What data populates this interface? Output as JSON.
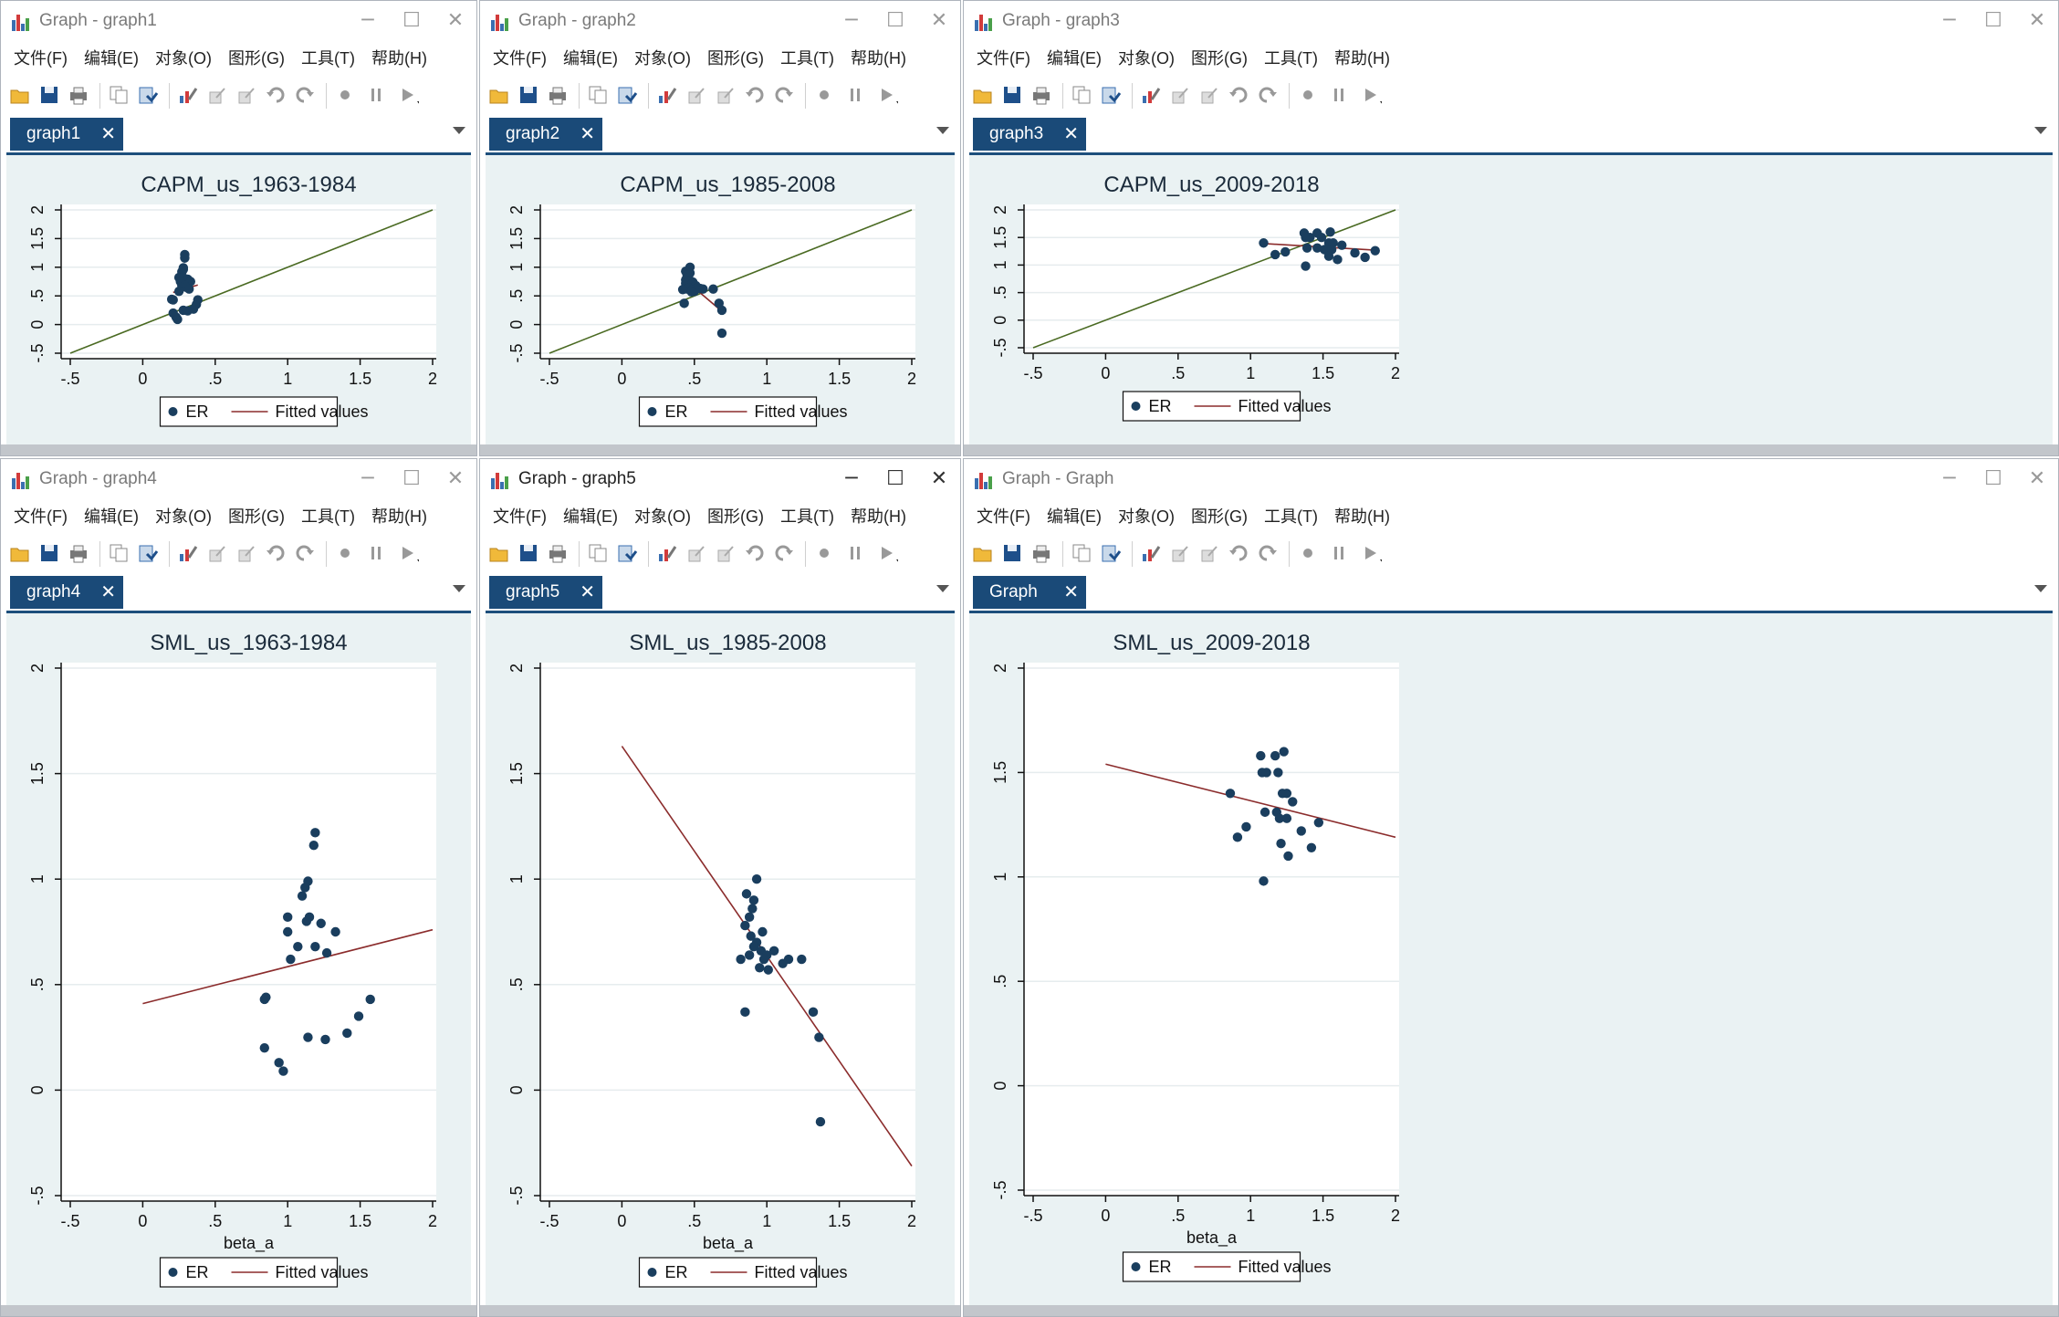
{
  "menu": [
    "文件(F)",
    "编辑(E)",
    "对象(O)",
    "图形(G)",
    "工具(T)",
    "帮助(H)"
  ],
  "controls": {
    "minimize": "─",
    "maximize": "☐",
    "close": "✕"
  },
  "colors": {
    "dot": "#1a3e5e",
    "capm_line": "#4a6a22",
    "fit_line": "#8b2c2c",
    "plot_bg": "#ffffff",
    "region_bg": "#eaf2f3",
    "tab": "#1a4a78"
  },
  "windows": [
    {
      "title": "Graph - graph1",
      "tab": "graph1",
      "active": false
    },
    {
      "title": "Graph - graph2",
      "tab": "graph2",
      "active": false
    },
    {
      "title": "Graph - graph3",
      "tab": "graph3",
      "active": false
    },
    {
      "title": "Graph - graph4",
      "tab": "graph4",
      "active": false
    },
    {
      "title": "Graph - graph5",
      "tab": "graph5",
      "active": true
    },
    {
      "title": "Graph - Graph",
      "tab": "Graph",
      "active": false
    }
  ],
  "chart_data": [
    {
      "type": "scatter",
      "title": "CAPM_us_1963-1984",
      "xlabel": "",
      "ylabel": "",
      "xlim": [
        -0.5,
        2
      ],
      "ylim": [
        -0.5,
        2
      ],
      "x_ticks": [
        "-.5",
        "0",
        ".5",
        "1",
        "1.5",
        "2"
      ],
      "y_ticks": [
        "-.5",
        "0",
        ".5",
        "1",
        "1.5",
        "2"
      ],
      "legend": [
        "ER",
        "Fitted values"
      ],
      "grid": true,
      "legend_position": "bottom",
      "series": [
        {
          "name": "ER",
          "points": [
            [
              0.29,
              1.22
            ],
            [
              0.29,
              1.16
            ],
            [
              0.28,
              0.99
            ],
            [
              0.28,
              0.96
            ],
            [
              0.27,
              0.92
            ],
            [
              0.25,
              0.82
            ],
            [
              0.27,
              0.82
            ],
            [
              0.29,
              0.8
            ],
            [
              0.31,
              0.79
            ],
            [
              0.33,
              0.75
            ],
            [
              0.26,
              0.75
            ],
            [
              0.27,
              0.68
            ],
            [
              0.29,
              0.68
            ],
            [
              0.3,
              0.65
            ],
            [
              0.32,
              0.62
            ],
            [
              0.25,
              0.58
            ],
            [
              0.2,
              0.44
            ],
            [
              0.21,
              0.43
            ],
            [
              0.38,
              0.43
            ],
            [
              0.37,
              0.35
            ],
            [
              0.35,
              0.27
            ],
            [
              0.28,
              0.25
            ],
            [
              0.31,
              0.24
            ],
            [
              0.21,
              0.2
            ],
            [
              0.23,
              0.13
            ],
            [
              0.24,
              0.09
            ]
          ]
        },
        {
          "name": "Fitted values",
          "line": [
            [
              0.21,
              0.56
            ],
            [
              0.38,
              0.69
            ]
          ]
        }
      ],
      "reference_line": [
        [
          -0.5,
          -0.5
        ],
        [
          2,
          2
        ]
      ]
    },
    {
      "type": "scatter",
      "title": "CAPM_us_1985-2008",
      "xlabel": "",
      "ylabel": "",
      "xlim": [
        -0.5,
        2
      ],
      "ylim": [
        -0.5,
        2
      ],
      "x_ticks": [
        "-.5",
        "0",
        ".5",
        "1",
        "1.5",
        "2"
      ],
      "y_ticks": [
        "-.5",
        "0",
        ".5",
        "1",
        "1.5",
        "2"
      ],
      "legend": [
        "ER",
        "Fitted values"
      ],
      "grid": true,
      "legend_position": "bottom",
      "series": [
        {
          "name": "ER",
          "points": [
            [
              0.47,
              1.0
            ],
            [
              0.44,
              0.93
            ],
            [
              0.47,
              0.9
            ],
            [
              0.45,
              0.86
            ],
            [
              0.46,
              0.82
            ],
            [
              0.44,
              0.78
            ],
            [
              0.46,
              0.75
            ],
            [
              0.49,
              0.74
            ],
            [
              0.44,
              0.72
            ],
            [
              0.48,
              0.7
            ],
            [
              0.51,
              0.68
            ],
            [
              0.5,
              0.66
            ],
            [
              0.46,
              0.64
            ],
            [
              0.52,
              0.64
            ],
            [
              0.54,
              0.63
            ],
            [
              0.45,
              0.62
            ],
            [
              0.56,
              0.62
            ],
            [
              0.63,
              0.62
            ],
            [
              0.42,
              0.61
            ],
            [
              0.48,
              0.6
            ],
            [
              0.5,
              0.58
            ],
            [
              0.48,
              0.57
            ],
            [
              0.43,
              0.37
            ],
            [
              0.67,
              0.37
            ],
            [
              0.69,
              0.25
            ],
            [
              0.69,
              -0.15
            ]
          ]
        },
        {
          "name": "Fitted values",
          "line": [
            [
              0.44,
              0.77
            ],
            [
              0.69,
              0.23
            ]
          ]
        }
      ],
      "reference_line": [
        [
          -0.5,
          -0.5
        ],
        [
          2,
          2
        ]
      ]
    },
    {
      "type": "scatter",
      "title": "CAPM_us_2009-2018",
      "xlabel": "",
      "ylabel": "",
      "xlim": [
        -0.5,
        2
      ],
      "ylim": [
        -0.5,
        2
      ],
      "x_ticks": [
        "-.5",
        "0",
        ".5",
        "1",
        "1.5",
        "2"
      ],
      "y_ticks": [
        "-.5",
        "0",
        ".5",
        "1",
        "1.5",
        "2"
      ],
      "legend": [
        "ER",
        "Fitted values"
      ],
      "grid": true,
      "legend_position": "bottom",
      "series": [
        {
          "name": "ER",
          "points": [
            [
              1.55,
              1.6
            ],
            [
              1.37,
              1.58
            ],
            [
              1.46,
              1.58
            ],
            [
              1.38,
              1.5
            ],
            [
              1.41,
              1.5
            ],
            [
              1.49,
              1.5
            ],
            [
              1.09,
              1.4
            ],
            [
              1.54,
              1.4
            ],
            [
              1.57,
              1.4
            ],
            [
              1.63,
              1.36
            ],
            [
              1.39,
              1.31
            ],
            [
              1.46,
              1.31
            ],
            [
              1.51,
              1.28
            ],
            [
              1.56,
              1.28
            ],
            [
              1.24,
              1.24
            ],
            [
              1.72,
              1.22
            ],
            [
              1.86,
              1.26
            ],
            [
              1.17,
              1.19
            ],
            [
              1.54,
              1.16
            ],
            [
              1.6,
              1.1
            ],
            [
              1.79,
              1.14
            ],
            [
              1.38,
              0.98
            ]
          ]
        },
        {
          "name": "Fitted values",
          "line": [
            [
              1.09,
              1.39
            ],
            [
              1.86,
              1.27
            ]
          ]
        }
      ],
      "reference_line": [
        [
          -0.5,
          -0.5
        ],
        [
          2,
          2
        ]
      ]
    },
    {
      "type": "scatter",
      "title": "SML_us_1963-1984",
      "xlabel": "beta_a",
      "ylabel": "",
      "xlim": [
        -0.5,
        2
      ],
      "ylim": [
        -0.5,
        2
      ],
      "x_ticks": [
        "-.5",
        "0",
        ".5",
        "1",
        "1.5",
        "2"
      ],
      "y_ticks": [
        "-.5",
        "0",
        ".5",
        "1",
        "1.5",
        "2"
      ],
      "legend": [
        "ER",
        "Fitted values"
      ],
      "grid": true,
      "legend_position": "bottom",
      "series": [
        {
          "name": "ER",
          "points": [
            [
              1.19,
              1.22
            ],
            [
              1.18,
              1.16
            ],
            [
              1.14,
              0.99
            ],
            [
              1.12,
              0.96
            ],
            [
              1.1,
              0.92
            ],
            [
              1.0,
              0.82
            ],
            [
              1.15,
              0.82
            ],
            [
              1.13,
              0.8
            ],
            [
              1.23,
              0.79
            ],
            [
              1.33,
              0.75
            ],
            [
              1.0,
              0.75
            ],
            [
              1.07,
              0.68
            ],
            [
              1.19,
              0.68
            ],
            [
              1.27,
              0.65
            ],
            [
              1.02,
              0.62
            ],
            [
              0.85,
              0.44
            ],
            [
              0.84,
              0.43
            ],
            [
              1.57,
              0.43
            ],
            [
              1.49,
              0.35
            ],
            [
              1.41,
              0.27
            ],
            [
              1.14,
              0.25
            ],
            [
              1.26,
              0.24
            ],
            [
              0.84,
              0.2
            ],
            [
              0.94,
              0.13
            ],
            [
              0.97,
              0.09
            ]
          ]
        },
        {
          "name": "Fitted values",
          "line": [
            [
              0,
              0.41
            ],
            [
              2,
              0.76
            ]
          ]
        }
      ]
    },
    {
      "type": "scatter",
      "title": "SML_us_1985-2008",
      "xlabel": "beta_a",
      "ylabel": "",
      "xlim": [
        -0.5,
        2
      ],
      "ylim": [
        -0.5,
        2
      ],
      "x_ticks": [
        "-.5",
        "0",
        ".5",
        "1",
        "1.5",
        "2"
      ],
      "y_ticks": [
        "-.5",
        "0",
        ".5",
        "1",
        "1.5",
        "2"
      ],
      "legend": [
        "ER",
        "Fitted values"
      ],
      "grid": true,
      "legend_position": "bottom",
      "series": [
        {
          "name": "ER",
          "points": [
            [
              0.93,
              1.0
            ],
            [
              0.86,
              0.93
            ],
            [
              0.91,
              0.9
            ],
            [
              0.9,
              0.86
            ],
            [
              0.88,
              0.82
            ],
            [
              0.85,
              0.78
            ],
            [
              0.97,
              0.75
            ],
            [
              0.89,
              0.73
            ],
            [
              0.93,
              0.7
            ],
            [
              0.91,
              0.68
            ],
            [
              0.96,
              0.66
            ],
            [
              0.88,
              0.64
            ],
            [
              1.05,
              0.66
            ],
            [
              1.0,
              0.64
            ],
            [
              0.98,
              0.62
            ],
            [
              0.82,
              0.62
            ],
            [
              1.15,
              0.62
            ],
            [
              1.24,
              0.62
            ],
            [
              0.95,
              0.58
            ],
            [
              1.01,
              0.57
            ],
            [
              1.11,
              0.6
            ],
            [
              0.85,
              0.37
            ],
            [
              1.32,
              0.37
            ],
            [
              1.36,
              0.25
            ],
            [
              1.37,
              -0.15
            ]
          ]
        },
        {
          "name": "Fitted values",
          "line": [
            [
              0,
              1.63
            ],
            [
              2,
              -0.36
            ]
          ]
        }
      ]
    },
    {
      "type": "scatter",
      "title": "SML_us_2009-2018",
      "xlabel": "beta_a",
      "ylabel": "",
      "xlim": [
        -0.5,
        2
      ],
      "ylim": [
        -0.5,
        2
      ],
      "x_ticks": [
        "-.5",
        "0",
        ".5",
        "1",
        "1.5",
        "2"
      ],
      "y_ticks": [
        "-.5",
        "0",
        ".5",
        "1",
        "1.5",
        "2"
      ],
      "legend": [
        "ER",
        "Fitted values"
      ],
      "grid": true,
      "legend_position": "bottom",
      "series": [
        {
          "name": "ER",
          "points": [
            [
              1.23,
              1.6
            ],
            [
              1.07,
              1.58
            ],
            [
              1.17,
              1.58
            ],
            [
              1.08,
              1.5
            ],
            [
              1.11,
              1.5
            ],
            [
              1.19,
              1.5
            ],
            [
              0.86,
              1.4
            ],
            [
              1.22,
              1.4
            ],
            [
              1.25,
              1.4
            ],
            [
              1.29,
              1.36
            ],
            [
              1.1,
              1.31
            ],
            [
              1.18,
              1.31
            ],
            [
              1.2,
              1.28
            ],
            [
              1.25,
              1.28
            ],
            [
              0.97,
              1.24
            ],
            [
              1.35,
              1.22
            ],
            [
              1.47,
              1.26
            ],
            [
              0.91,
              1.19
            ],
            [
              1.21,
              1.16
            ],
            [
              1.26,
              1.1
            ],
            [
              1.42,
              1.14
            ],
            [
              1.09,
              0.98
            ]
          ]
        },
        {
          "name": "Fitted values",
          "line": [
            [
              0,
              1.54
            ],
            [
              2,
              1.19
            ]
          ]
        }
      ]
    }
  ]
}
